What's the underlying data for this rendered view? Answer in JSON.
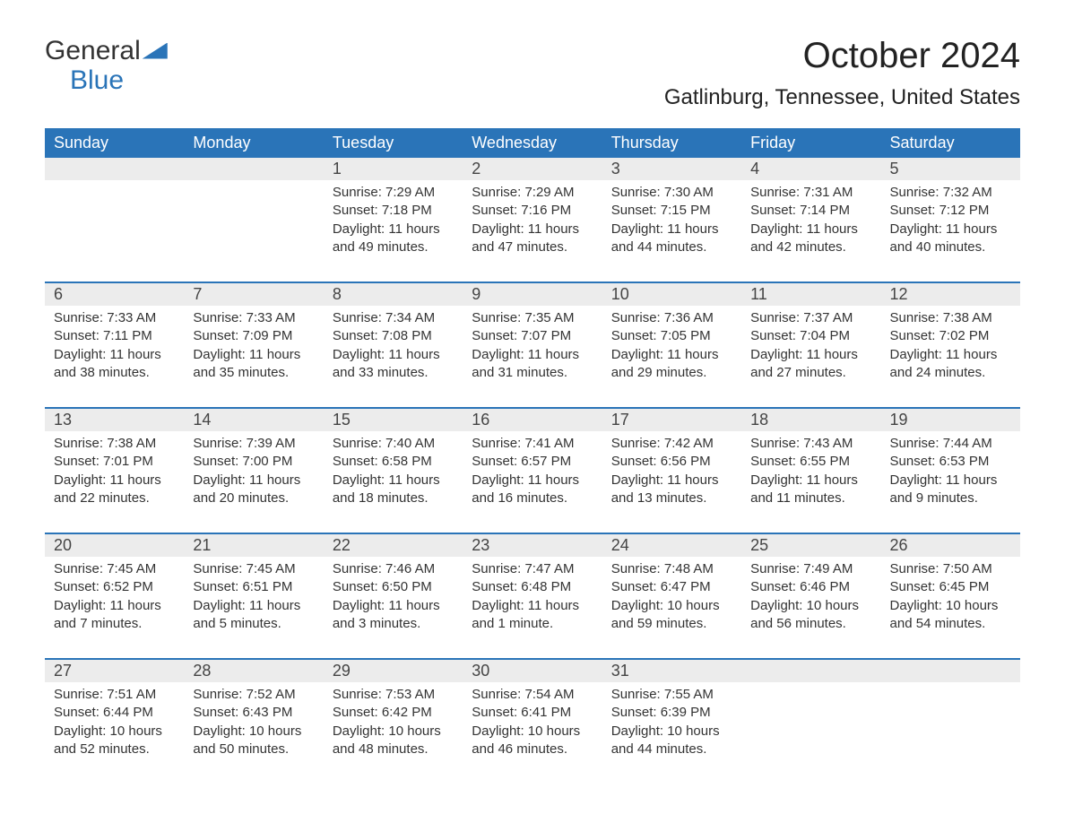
{
  "logo": {
    "line1": "General",
    "line2": "Blue"
  },
  "title": "October 2024",
  "location": "Gatlinburg, Tennessee, United States",
  "dayNames": [
    "Sunday",
    "Monday",
    "Tuesday",
    "Wednesday",
    "Thursday",
    "Friday",
    "Saturday"
  ],
  "colors": {
    "accent": "#2a74b8",
    "headerText": "#ffffff",
    "dayNumBg": "#ececec",
    "text": "#333333",
    "background": "#ffffff"
  },
  "typography": {
    "title_fontsize": 40,
    "location_fontsize": 24,
    "dayhead_fontsize": 18,
    "body_fontsize": 15
  },
  "weeks": [
    [
      null,
      null,
      {
        "n": "1",
        "sunrise": "Sunrise: 7:29 AM",
        "sunset": "Sunset: 7:18 PM",
        "daylight": "Daylight: 11 hours and 49 minutes."
      },
      {
        "n": "2",
        "sunrise": "Sunrise: 7:29 AM",
        "sunset": "Sunset: 7:16 PM",
        "daylight": "Daylight: 11 hours and 47 minutes."
      },
      {
        "n": "3",
        "sunrise": "Sunrise: 7:30 AM",
        "sunset": "Sunset: 7:15 PM",
        "daylight": "Daylight: 11 hours and 44 minutes."
      },
      {
        "n": "4",
        "sunrise": "Sunrise: 7:31 AM",
        "sunset": "Sunset: 7:14 PM",
        "daylight": "Daylight: 11 hours and 42 minutes."
      },
      {
        "n": "5",
        "sunrise": "Sunrise: 7:32 AM",
        "sunset": "Sunset: 7:12 PM",
        "daylight": "Daylight: 11 hours and 40 minutes."
      }
    ],
    [
      {
        "n": "6",
        "sunrise": "Sunrise: 7:33 AM",
        "sunset": "Sunset: 7:11 PM",
        "daylight": "Daylight: 11 hours and 38 minutes."
      },
      {
        "n": "7",
        "sunrise": "Sunrise: 7:33 AM",
        "sunset": "Sunset: 7:09 PM",
        "daylight": "Daylight: 11 hours and 35 minutes."
      },
      {
        "n": "8",
        "sunrise": "Sunrise: 7:34 AM",
        "sunset": "Sunset: 7:08 PM",
        "daylight": "Daylight: 11 hours and 33 minutes."
      },
      {
        "n": "9",
        "sunrise": "Sunrise: 7:35 AM",
        "sunset": "Sunset: 7:07 PM",
        "daylight": "Daylight: 11 hours and 31 minutes."
      },
      {
        "n": "10",
        "sunrise": "Sunrise: 7:36 AM",
        "sunset": "Sunset: 7:05 PM",
        "daylight": "Daylight: 11 hours and 29 minutes."
      },
      {
        "n": "11",
        "sunrise": "Sunrise: 7:37 AM",
        "sunset": "Sunset: 7:04 PM",
        "daylight": "Daylight: 11 hours and 27 minutes."
      },
      {
        "n": "12",
        "sunrise": "Sunrise: 7:38 AM",
        "sunset": "Sunset: 7:02 PM",
        "daylight": "Daylight: 11 hours and 24 minutes."
      }
    ],
    [
      {
        "n": "13",
        "sunrise": "Sunrise: 7:38 AM",
        "sunset": "Sunset: 7:01 PM",
        "daylight": "Daylight: 11 hours and 22 minutes."
      },
      {
        "n": "14",
        "sunrise": "Sunrise: 7:39 AM",
        "sunset": "Sunset: 7:00 PM",
        "daylight": "Daylight: 11 hours and 20 minutes."
      },
      {
        "n": "15",
        "sunrise": "Sunrise: 7:40 AM",
        "sunset": "Sunset: 6:58 PM",
        "daylight": "Daylight: 11 hours and 18 minutes."
      },
      {
        "n": "16",
        "sunrise": "Sunrise: 7:41 AM",
        "sunset": "Sunset: 6:57 PM",
        "daylight": "Daylight: 11 hours and 16 minutes."
      },
      {
        "n": "17",
        "sunrise": "Sunrise: 7:42 AM",
        "sunset": "Sunset: 6:56 PM",
        "daylight": "Daylight: 11 hours and 13 minutes."
      },
      {
        "n": "18",
        "sunrise": "Sunrise: 7:43 AM",
        "sunset": "Sunset: 6:55 PM",
        "daylight": "Daylight: 11 hours and 11 minutes."
      },
      {
        "n": "19",
        "sunrise": "Sunrise: 7:44 AM",
        "sunset": "Sunset: 6:53 PM",
        "daylight": "Daylight: 11 hours and 9 minutes."
      }
    ],
    [
      {
        "n": "20",
        "sunrise": "Sunrise: 7:45 AM",
        "sunset": "Sunset: 6:52 PM",
        "daylight": "Daylight: 11 hours and 7 minutes."
      },
      {
        "n": "21",
        "sunrise": "Sunrise: 7:45 AM",
        "sunset": "Sunset: 6:51 PM",
        "daylight": "Daylight: 11 hours and 5 minutes."
      },
      {
        "n": "22",
        "sunrise": "Sunrise: 7:46 AM",
        "sunset": "Sunset: 6:50 PM",
        "daylight": "Daylight: 11 hours and 3 minutes."
      },
      {
        "n": "23",
        "sunrise": "Sunrise: 7:47 AM",
        "sunset": "Sunset: 6:48 PM",
        "daylight": "Daylight: 11 hours and 1 minute."
      },
      {
        "n": "24",
        "sunrise": "Sunrise: 7:48 AM",
        "sunset": "Sunset: 6:47 PM",
        "daylight": "Daylight: 10 hours and 59 minutes."
      },
      {
        "n": "25",
        "sunrise": "Sunrise: 7:49 AM",
        "sunset": "Sunset: 6:46 PM",
        "daylight": "Daylight: 10 hours and 56 minutes."
      },
      {
        "n": "26",
        "sunrise": "Sunrise: 7:50 AM",
        "sunset": "Sunset: 6:45 PM",
        "daylight": "Daylight: 10 hours and 54 minutes."
      }
    ],
    [
      {
        "n": "27",
        "sunrise": "Sunrise: 7:51 AM",
        "sunset": "Sunset: 6:44 PM",
        "daylight": "Daylight: 10 hours and 52 minutes."
      },
      {
        "n": "28",
        "sunrise": "Sunrise: 7:52 AM",
        "sunset": "Sunset: 6:43 PM",
        "daylight": "Daylight: 10 hours and 50 minutes."
      },
      {
        "n": "29",
        "sunrise": "Sunrise: 7:53 AM",
        "sunset": "Sunset: 6:42 PM",
        "daylight": "Daylight: 10 hours and 48 minutes."
      },
      {
        "n": "30",
        "sunrise": "Sunrise: 7:54 AM",
        "sunset": "Sunset: 6:41 PM",
        "daylight": "Daylight: 10 hours and 46 minutes."
      },
      {
        "n": "31",
        "sunrise": "Sunrise: 7:55 AM",
        "sunset": "Sunset: 6:39 PM",
        "daylight": "Daylight: 10 hours and 44 minutes."
      },
      null,
      null
    ]
  ]
}
